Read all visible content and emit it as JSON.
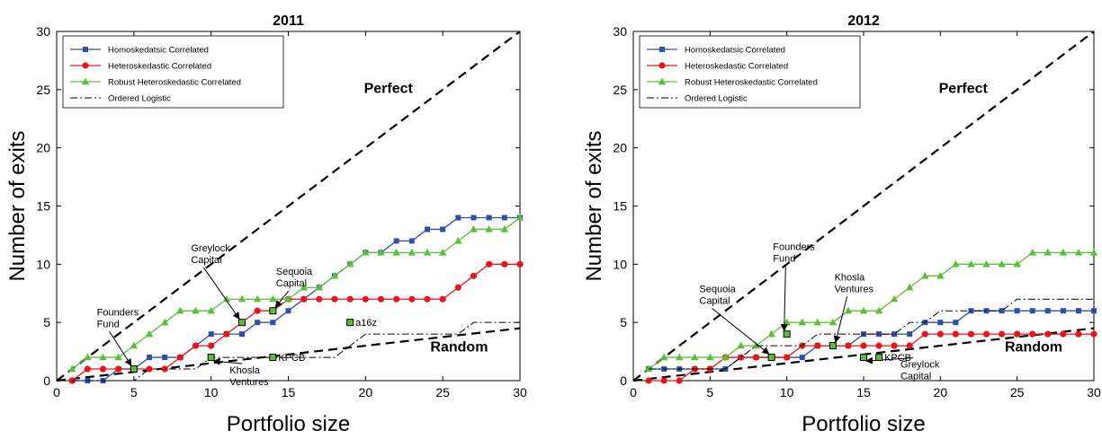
{
  "colors": {
    "homoskedastic": "#2e4fa8",
    "heteroskedastic": "#e8141b",
    "robust": "#5bbf3a",
    "ordered_logistic": "#000000",
    "reference_lines": "#000000",
    "firm_marker": "#5bbf3a"
  },
  "chart_data": [
    {
      "type": "line",
      "title": "2011",
      "xlabel": "Portfolio size",
      "ylabel": "Number of exits",
      "xlim": [
        0,
        30
      ],
      "ylim": [
        0,
        30
      ],
      "xticks": [
        "0",
        "5",
        "10",
        "15",
        "20",
        "25",
        "30"
      ],
      "yticks": [
        "0",
        "5",
        "10",
        "15",
        "20",
        "25",
        "30"
      ],
      "grid": false,
      "legend_position": "top-left",
      "x": [
        1,
        2,
        3,
        4,
        5,
        6,
        7,
        8,
        9,
        10,
        11,
        12,
        13,
        14,
        15,
        16,
        17,
        18,
        19,
        20,
        21,
        22,
        23,
        24,
        25,
        26,
        27,
        28,
        29,
        30
      ],
      "series": [
        {
          "name": "Homoskedatsic Correlated",
          "key": "homoskedastic",
          "marker": "square",
          "values": [
            0,
            0,
            0,
            1,
            1,
            2,
            2,
            2,
            3,
            4,
            4,
            4,
            5,
            5,
            6,
            7,
            8,
            9,
            10,
            11,
            11,
            12,
            12,
            13,
            13,
            14,
            14,
            14,
            14,
            14
          ]
        },
        {
          "name": "Heteroskedastic Correlated",
          "key": "heteroskedastic",
          "marker": "circle",
          "values": [
            0,
            1,
            1,
            1,
            1,
            1,
            1,
            2,
            3,
            3,
            4,
            5,
            6,
            6,
            7,
            7,
            7,
            7,
            7,
            7,
            7,
            7,
            7,
            7,
            7,
            8,
            9,
            10,
            10,
            10
          ]
        },
        {
          "name": "Robust Heteroskedastic Correlated",
          "key": "robust",
          "marker": "triangle",
          "values": [
            1,
            2,
            2,
            2,
            3,
            4,
            5,
            6,
            6,
            6,
            7,
            7,
            7,
            7,
            7,
            8,
            8,
            9,
            10,
            11,
            11,
            11,
            11,
            11,
            11,
            12,
            13,
            13,
            13,
            14
          ]
        },
        {
          "name": "Ordered Logistic",
          "key": "ordered_logistic",
          "marker": "none",
          "values": [
            0,
            0,
            0,
            0,
            0,
            1,
            1,
            1,
            1,
            2,
            2,
            2,
            2,
            2,
            2,
            2,
            2,
            2,
            3,
            4,
            4,
            4,
            4,
            4,
            4,
            4,
            5,
            5,
            5,
            5
          ]
        }
      ],
      "reference_lines": [
        {
          "label": "Perfect",
          "from": [
            0,
            0
          ],
          "to": [
            30,
            30
          ]
        },
        {
          "label": "Random",
          "from": [
            0,
            0
          ],
          "to": [
            30,
            4.5
          ]
        }
      ],
      "annotations": [
        {
          "text": [
            "Founders",
            "Fund"
          ],
          "point": [
            5,
            1
          ],
          "label_at": [
            2.6,
            5.3
          ]
        },
        {
          "text": [
            "Greylock",
            "Capital"
          ],
          "point": [
            12,
            5
          ],
          "label_at": [
            8.7,
            10.8
          ]
        },
        {
          "text": [
            "Sequoia",
            "Capital"
          ],
          "point": [
            14,
            6
          ],
          "label_at": [
            14.2,
            8.8
          ]
        },
        {
          "text": [
            "Khosla",
            "Ventures"
          ],
          "point": [
            10,
            2
          ],
          "label_at": [
            11.2,
            0.3
          ]
        }
      ],
      "firm_points": [
        {
          "label": "a16z",
          "x": 19,
          "y": 5
        },
        {
          "label": "KPCB",
          "x": 14,
          "y": 2
        }
      ]
    },
    {
      "type": "line",
      "title": "2012",
      "xlabel": "Portfolio size",
      "ylabel": "Number of exits",
      "xlim": [
        0,
        30
      ],
      "ylim": [
        0,
        30
      ],
      "xticks": [
        "0",
        "5",
        "10",
        "15",
        "20",
        "25",
        "30"
      ],
      "yticks": [
        "0",
        "5",
        "10",
        "15",
        "20",
        "25",
        "30"
      ],
      "grid": false,
      "legend_position": "top-left",
      "x": [
        1,
        2,
        3,
        4,
        5,
        6,
        7,
        8,
        9,
        10,
        11,
        12,
        13,
        14,
        15,
        16,
        17,
        18,
        19,
        20,
        21,
        22,
        23,
        24,
        25,
        26,
        27,
        28,
        29,
        30
      ],
      "series": [
        {
          "name": "Homoskedatsic Correlated",
          "key": "homoskedastic",
          "marker": "square",
          "values": [
            1,
            1,
            1,
            1,
            1,
            1,
            2,
            2,
            2,
            2,
            2,
            3,
            3,
            3,
            4,
            4,
            4,
            4,
            5,
            5,
            5,
            6,
            6,
            6,
            6,
            6,
            6,
            6,
            6,
            6
          ]
        },
        {
          "name": "Heteroskedastic Correlated",
          "key": "heteroskedastic",
          "marker": "circle",
          "values": [
            0,
            0,
            0,
            1,
            1,
            2,
            2,
            2,
            2,
            2,
            3,
            3,
            3,
            3,
            3,
            3,
            3,
            3,
            4,
            4,
            4,
            4,
            4,
            4,
            4,
            4,
            4,
            4,
            4,
            4
          ]
        },
        {
          "name": "Robust Heteroskedastic Correlated",
          "key": "robust",
          "marker": "triangle",
          "values": [
            1,
            2,
            2,
            2,
            2,
            2,
            3,
            3,
            4,
            5,
            5,
            5,
            5,
            6,
            6,
            6,
            7,
            8,
            9,
            9,
            10,
            10,
            10,
            10,
            10,
            11,
            11,
            11,
            11,
            11
          ]
        },
        {
          "name": "Ordered Logistic",
          "key": "ordered_logistic",
          "marker": "none",
          "values": [
            1,
            1,
            1,
            1,
            1,
            1,
            2,
            3,
            3,
            3,
            3,
            4,
            4,
            4,
            4,
            4,
            4,
            5,
            5,
            6,
            6,
            6,
            6,
            6,
            7,
            7,
            7,
            7,
            7,
            7
          ]
        }
      ],
      "reference_lines": [
        {
          "label": "Perfect",
          "from": [
            0,
            0
          ],
          "to": [
            30,
            30
          ]
        },
        {
          "label": "Random",
          "from": [
            0,
            0
          ],
          "to": [
            30,
            4.5
          ]
        }
      ],
      "annotations": [
        {
          "text": [
            "Founders",
            "Fund"
          ],
          "point": [
            10,
            4
          ],
          "label_at": [
            9.1,
            10.9
          ]
        },
        {
          "text": [
            "Sequoia",
            "Capital"
          ],
          "point": [
            9,
            2
          ],
          "label_at": [
            4.3,
            7.3
          ]
        },
        {
          "text": [
            "Khosla",
            "Ventures"
          ],
          "point": [
            13,
            3
          ],
          "label_at": [
            13.1,
            8.3
          ]
        },
        {
          "text": [
            "Greylock",
            "Capital"
          ],
          "point": [
            15,
            2
          ],
          "label_at": [
            17.4,
            0.8
          ]
        }
      ],
      "firm_points": [
        {
          "label": "KPCB",
          "x": 16,
          "y": 2
        }
      ]
    }
  ]
}
